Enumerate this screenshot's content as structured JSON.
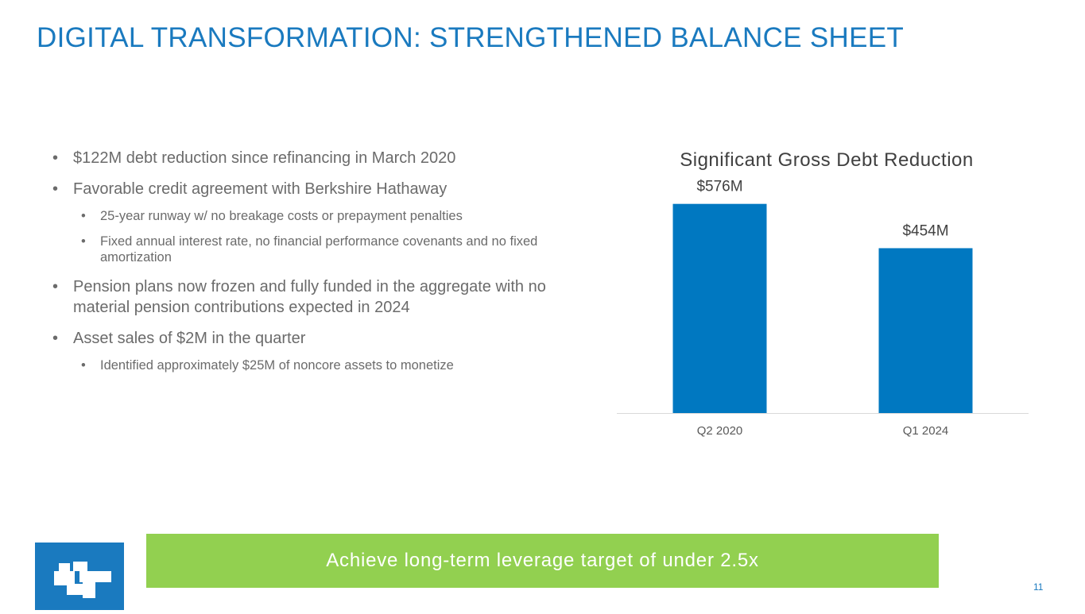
{
  "slide": {
    "title": "DIGITAL TRANSFORMATION: STRENGTHENED BALANCE SHEET",
    "page_number": "11"
  },
  "bullets": [
    {
      "level": 1,
      "text": "$122M debt reduction since refinancing in March 2020"
    },
    {
      "level": 1,
      "text": "Favorable credit agreement with Berkshire Hathaway"
    },
    {
      "level": 2,
      "text": "25-year runway w/ no breakage costs or prepayment penalties"
    },
    {
      "level": 2,
      "text": "Fixed annual interest rate, no financial performance covenants and no fixed amortization"
    },
    {
      "level": 1,
      "text": "Pension plans now frozen and fully funded in the aggregate with no material pension contributions expected in 2024"
    },
    {
      "level": 1,
      "text": "Asset sales of $2M in the quarter"
    },
    {
      "level": 2,
      "text": "Identified approximately $25M of noncore assets to monetize"
    }
  ],
  "callout": {
    "text": "Achieve long-term leverage target of under 2.5x"
  },
  "colors": {
    "title": "#1a7abf",
    "bar": "#0078c1",
    "callout_bg": "#92d050",
    "logo_bg": "#1a7abf",
    "page_number": "#1a7abf"
  },
  "icons": {
    "logo": "company-logo-icon"
  },
  "chart_data": {
    "type": "bar",
    "title": "Significant Gross Debt Reduction",
    "categories": [
      "Q2 2020",
      "Q1 2024"
    ],
    "values": [
      576,
      454
    ],
    "data_labels": [
      "$576M",
      "$454M"
    ],
    "ylim": [
      0,
      700
    ],
    "grid": false,
    "legend": "none"
  }
}
